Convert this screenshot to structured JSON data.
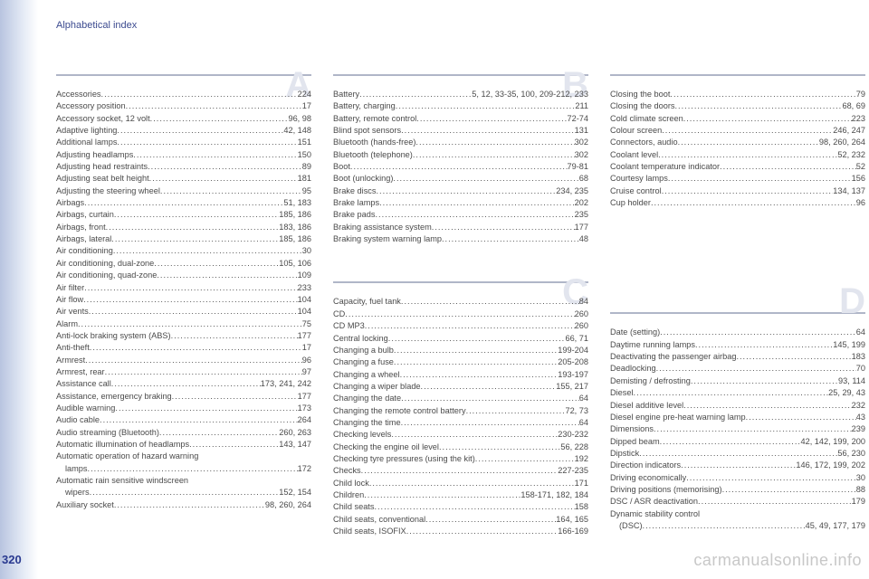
{
  "header": "Alphabetical index",
  "page_number": "320",
  "watermark": "carmanualsonline.info",
  "colors": {
    "header_text": "#3b4a8f",
    "body_text": "#4a4a4a",
    "letter_bg": "#e2e5ee",
    "rule": "#b0b6c8",
    "page_num": "#2a3a90",
    "watermark": "#c8c8c8"
  },
  "sections": {
    "A": [
      {
        "label": "Accessories",
        "page": "224"
      },
      {
        "label": "Accessory position",
        "page": "17"
      },
      {
        "label": "Accessory socket, 12 volt",
        "page": "96, 98"
      },
      {
        "label": "Adaptive lighting",
        "page": "42, 148"
      },
      {
        "label": "Additional lamps",
        "page": "151"
      },
      {
        "label": "Adjusting headlamps",
        "page": "150"
      },
      {
        "label": "Adjusting head restraints",
        "page": "89"
      },
      {
        "label": "Adjusting seat belt height",
        "page": "181"
      },
      {
        "label": "Adjusting the steering wheel",
        "page": "95"
      },
      {
        "label": "Airbags",
        "page": "51, 183"
      },
      {
        "label": "Airbags, curtain",
        "page": "185, 186"
      },
      {
        "label": "Airbags, front",
        "page": "183, 186"
      },
      {
        "label": "Airbags, lateral",
        "page": "185, 186"
      },
      {
        "label": "Air conditioning",
        "page": "30"
      },
      {
        "label": "Air conditioning, dual-zone",
        "page": "105, 106"
      },
      {
        "label": "Air conditioning, quad-zone",
        "page": "109"
      },
      {
        "label": "Air filter",
        "page": "233"
      },
      {
        "label": "Air flow",
        "page": "104"
      },
      {
        "label": "Air vents",
        "page": "104"
      },
      {
        "label": "Alarm",
        "page": "75"
      },
      {
        "label": "Anti-lock braking system (ABS)",
        "page": "177"
      },
      {
        "label": "Anti-theft",
        "page": "17"
      },
      {
        "label": "Armrest",
        "page": "96"
      },
      {
        "label": "Armrest, rear",
        "page": "97"
      },
      {
        "label": "Assistance call",
        "page": "173, 241, 242"
      },
      {
        "label": "Assistance, emergency braking",
        "page": "177"
      },
      {
        "label": "Audible warning",
        "page": "173"
      },
      {
        "label": "Audio cable",
        "page": "264"
      },
      {
        "label": "Audio streaming (Bluetooth)",
        "page": "260, 263"
      },
      {
        "label": "Automatic illumination of headlamps",
        "page": "143, 147"
      },
      {
        "label": "Automatic operation of hazard warning",
        "cont": true
      },
      {
        "label": "lamps",
        "page": "172",
        "indent": true
      },
      {
        "label": "Automatic rain sensitive windscreen",
        "cont": true
      },
      {
        "label": "wipers",
        "page": "152, 154",
        "indent": true
      },
      {
        "label": "Auxiliary socket",
        "page": "98, 260, 264"
      }
    ],
    "B": [
      {
        "label": "Battery",
        "page": "5, 12, 33-35, 100, 209-212, 233"
      },
      {
        "label": "Battery, charging",
        "page": "211"
      },
      {
        "label": "Battery, remote control",
        "page": "72-74"
      },
      {
        "label": "Blind spot sensors",
        "page": "131"
      },
      {
        "label": "Bluetooth (hands-free)",
        "page": "302"
      },
      {
        "label": "Bluetooth (telephone)",
        "page": "302"
      },
      {
        "label": "Boot",
        "page": "79-81"
      },
      {
        "label": "Boot (unlocking)",
        "page": "68"
      },
      {
        "label": "Brake discs",
        "page": "234, 235"
      },
      {
        "label": "Brake lamps",
        "page": "202"
      },
      {
        "label": "Brake pads",
        "page": "235"
      },
      {
        "label": "Braking assistance system",
        "page": "177"
      },
      {
        "label": "Braking system warning lamp",
        "page": "48"
      }
    ],
    "C": [
      {
        "label": "Capacity, fuel tank",
        "page": "84"
      },
      {
        "label": "CD",
        "page": "260"
      },
      {
        "label": "CD MP3",
        "page": "260"
      },
      {
        "label": "Central locking",
        "page": "66, 71"
      },
      {
        "label": "Changing a bulb",
        "page": "199-204"
      },
      {
        "label": "Changing a fuse",
        "page": "205-208"
      },
      {
        "label": "Changing a wheel",
        "page": "193-197"
      },
      {
        "label": "Changing a wiper blade",
        "page": "155, 217"
      },
      {
        "label": "Changing the date",
        "page": "64"
      },
      {
        "label": "Changing the remote control battery",
        "page": "72, 73"
      },
      {
        "label": "Changing the time",
        "page": "64"
      },
      {
        "label": "Checking levels",
        "page": "230-232"
      },
      {
        "label": "Checking the engine oil level",
        "page": "56, 228"
      },
      {
        "label": "Checking tyre pressures (using the kit)",
        "page": "192"
      },
      {
        "label": "Checks",
        "page": "227-235"
      },
      {
        "label": "Child lock",
        "page": "171"
      },
      {
        "label": "Children",
        "page": "158-171, 182, 184"
      },
      {
        "label": "Child seats",
        "page": "158"
      },
      {
        "label": "Child seats, conventional",
        "page": "164, 165"
      },
      {
        "label": "Child seats, ISOFIX",
        "page": "166-169"
      }
    ],
    "Ctop": [
      {
        "label": "Closing the boot",
        "page": "79"
      },
      {
        "label": "Closing the doors",
        "page": "68, 69"
      },
      {
        "label": "Cold climate screen",
        "page": "223"
      },
      {
        "label": "Colour screen",
        "page": "246, 247"
      },
      {
        "label": "Connectors, audio",
        "page": "98, 260, 264"
      },
      {
        "label": "Coolant level",
        "page": "52, 232"
      },
      {
        "label": "Coolant temperature indicator",
        "page": "52"
      },
      {
        "label": "Courtesy lamps",
        "page": "156"
      },
      {
        "label": "Cruise control",
        "page": "134, 137"
      },
      {
        "label": "Cup holder",
        "page": "96"
      }
    ],
    "D": [
      {
        "label": "Date (setting)",
        "page": "64"
      },
      {
        "label": "Daytime running lamps",
        "page": "145, 199"
      },
      {
        "label": "Deactivating the passenger airbag",
        "page": "183"
      },
      {
        "label": "Deadlocking",
        "page": "70"
      },
      {
        "label": "Demisting / defrosting",
        "page": "93, 114"
      },
      {
        "label": "Diesel",
        "page": "25, 29, 43"
      },
      {
        "label": "Diesel additive level",
        "page": "232"
      },
      {
        "label": "Diesel engine pre-heat warning lamp",
        "page": "43"
      },
      {
        "label": "Dimensions",
        "page": "239"
      },
      {
        "label": "Dipped beam",
        "page": "42, 142, 199, 200"
      },
      {
        "label": "Dipstick",
        "page": "56, 230"
      },
      {
        "label": "Direction indicators",
        "page": "146, 172, 199, 202"
      },
      {
        "label": "Driving economically",
        "page": "30"
      },
      {
        "label": "Driving positions (memorising)",
        "page": "88"
      },
      {
        "label": "DSC / ASR deactivation",
        "page": "179"
      },
      {
        "label": "Dynamic stability control",
        "cont": true
      },
      {
        "label": "(DSC)",
        "page": "45, 49, 177, 179",
        "indent": true
      }
    ]
  }
}
